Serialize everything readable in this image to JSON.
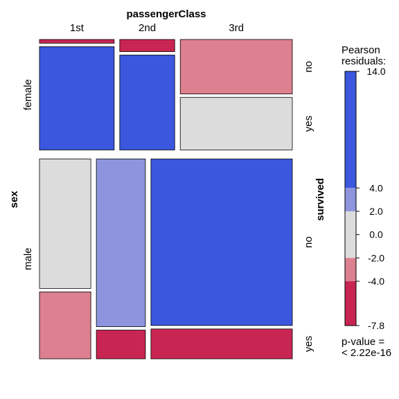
{
  "chart_data": {
    "type": "mosaic",
    "variables": {
      "column": {
        "name": "passengerClass",
        "levels": [
          "1st",
          "2nd",
          "3rd"
        ]
      },
      "row": {
        "name": "sex",
        "levels": [
          "female",
          "male"
        ]
      },
      "nested": {
        "name": "survived",
        "levels": [
          "no",
          "yes"
        ]
      }
    },
    "cells": [
      {
        "sex": "female",
        "passengerClass": "1st",
        "survived": "no",
        "count": 5,
        "residual": -7.8
      },
      {
        "sex": "female",
        "passengerClass": "1st",
        "survived": "yes",
        "count": 139,
        "residual": 14.0
      },
      {
        "sex": "female",
        "passengerClass": "2nd",
        "survived": "no",
        "count": 12,
        "residual": -7.8
      },
      {
        "sex": "female",
        "passengerClass": "2nd",
        "survived": "yes",
        "count": 94,
        "residual": 14.0
      },
      {
        "sex": "female",
        "passengerClass": "3rd",
        "survived": "no",
        "count": 110,
        "residual": -3.0
      },
      {
        "sex": "female",
        "passengerClass": "3rd",
        "survived": "yes",
        "count": 106,
        "residual": 0.5
      },
      {
        "sex": "male",
        "passengerClass": "1st",
        "survived": "no",
        "count": 118,
        "residual": 0.5
      },
      {
        "sex": "male",
        "passengerClass": "1st",
        "survived": "yes",
        "count": 61,
        "residual": -3.0
      },
      {
        "sex": "male",
        "passengerClass": "2nd",
        "survived": "no",
        "count": 146,
        "residual": 3.0
      },
      {
        "sex": "male",
        "passengerClass": "2nd",
        "survived": "yes",
        "count": 25,
        "residual": -7.8
      },
      {
        "sex": "male",
        "passengerClass": "3rd",
        "survived": "no",
        "count": 418,
        "residual": 14.0
      },
      {
        "sex": "male",
        "passengerClass": "3rd",
        "survived": "yes",
        "count": 75,
        "residual": -7.8
      }
    ],
    "legend": {
      "title_line1": "Pearson",
      "title_line2": "residuals:",
      "ticks": [
        "14.0",
        "4.0",
        "2.0",
        "0.0",
        "-2.0",
        "-4.0",
        "-7.8"
      ],
      "range": [
        -7.8,
        14.0
      ],
      "bands": [
        {
          "from": 4.0,
          "to": 14.0,
          "color": "#3b57de"
        },
        {
          "from": 2.0,
          "to": 4.0,
          "color": "#8e95de"
        },
        {
          "from": -2.0,
          "to": 2.0,
          "color": "#dcdcdc"
        },
        {
          "from": -4.0,
          "to": -2.0,
          "color": "#dd8090"
        },
        {
          "from": -7.8,
          "to": -4.0,
          "color": "#c82553"
        }
      ],
      "pvalue_line1": "p-value =",
      "pvalue_line2": "< 2.22e-16"
    }
  }
}
